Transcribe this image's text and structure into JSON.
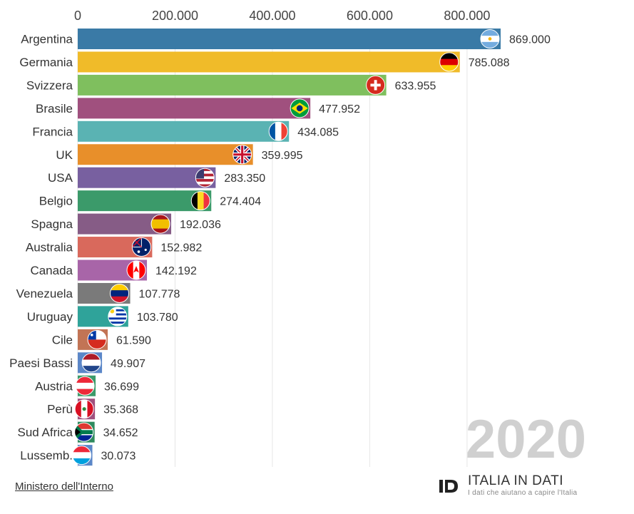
{
  "chart_data": {
    "type": "bar",
    "orientation": "horizontal",
    "title": "",
    "xlabel": "",
    "ylabel": "",
    "xlim": [
      0,
      869000
    ],
    "grid": true,
    "tick_values": [
      0,
      200000,
      400000,
      600000,
      800000
    ],
    "tick_labels": [
      "0",
      "200.000",
      "400.000",
      "600.000",
      "800.000"
    ],
    "year": "2020",
    "categories": [
      "Argentina",
      "Germania",
      "Svizzera",
      "Brasile",
      "Francia",
      "UK",
      "USA",
      "Belgio",
      "Spagna",
      "Australia",
      "Canada",
      "Venezuela",
      "Uruguay",
      "Cile",
      "Paesi Bassi",
      "Austria",
      "Perù",
      "Sud Africa",
      "Lussemb."
    ],
    "values": [
      869000,
      785088,
      633955,
      477952,
      434085,
      359995,
      283350,
      274404,
      192036,
      152982,
      142192,
      107778,
      103780,
      61590,
      49907,
      36699,
      35368,
      34652,
      30073
    ],
    "value_labels": [
      "869.000",
      "785.088",
      "633.955",
      "477.952",
      "434.085",
      "359.995",
      "283.350",
      "274.404",
      "192.036",
      "152.982",
      "142.192",
      "107.778",
      "103.780",
      "61.590",
      "49.907",
      "36.699",
      "35.368",
      "34.652",
      "30.073"
    ],
    "colors": [
      "#3a7aa6",
      "#f0bb29",
      "#7fbf5e",
      "#a0507e",
      "#5ab3b3",
      "#e88f2a",
      "#7860a0",
      "#3b9a6a",
      "#865c86",
      "#d9695c",
      "#a865a8",
      "#7a7a7a",
      "#2fa39a",
      "#c27455",
      "#5b87c8",
      "#3b9a6a",
      "#a0507e",
      "#2e8a5e",
      "#5b87c8"
    ],
    "flags": [
      "argentina-flag",
      "germany-flag",
      "switzerland-flag",
      "brazil-flag",
      "france-flag",
      "uk-flag",
      "usa-flag",
      "belgium-flag",
      "spain-flag",
      "australia-flag",
      "canada-flag",
      "venezuela-flag",
      "uruguay-flag",
      "chile-flag",
      "netherlands-flag",
      "austria-flag",
      "peru-flag",
      "south-africa-flag",
      "luxembourg-flag"
    ]
  },
  "footer": {
    "source_label": "Ministero dell'Interno",
    "brand_name": "ITALIA IN DATI",
    "brand_tagline": "I dati che aiutano a capire l'Italia"
  }
}
